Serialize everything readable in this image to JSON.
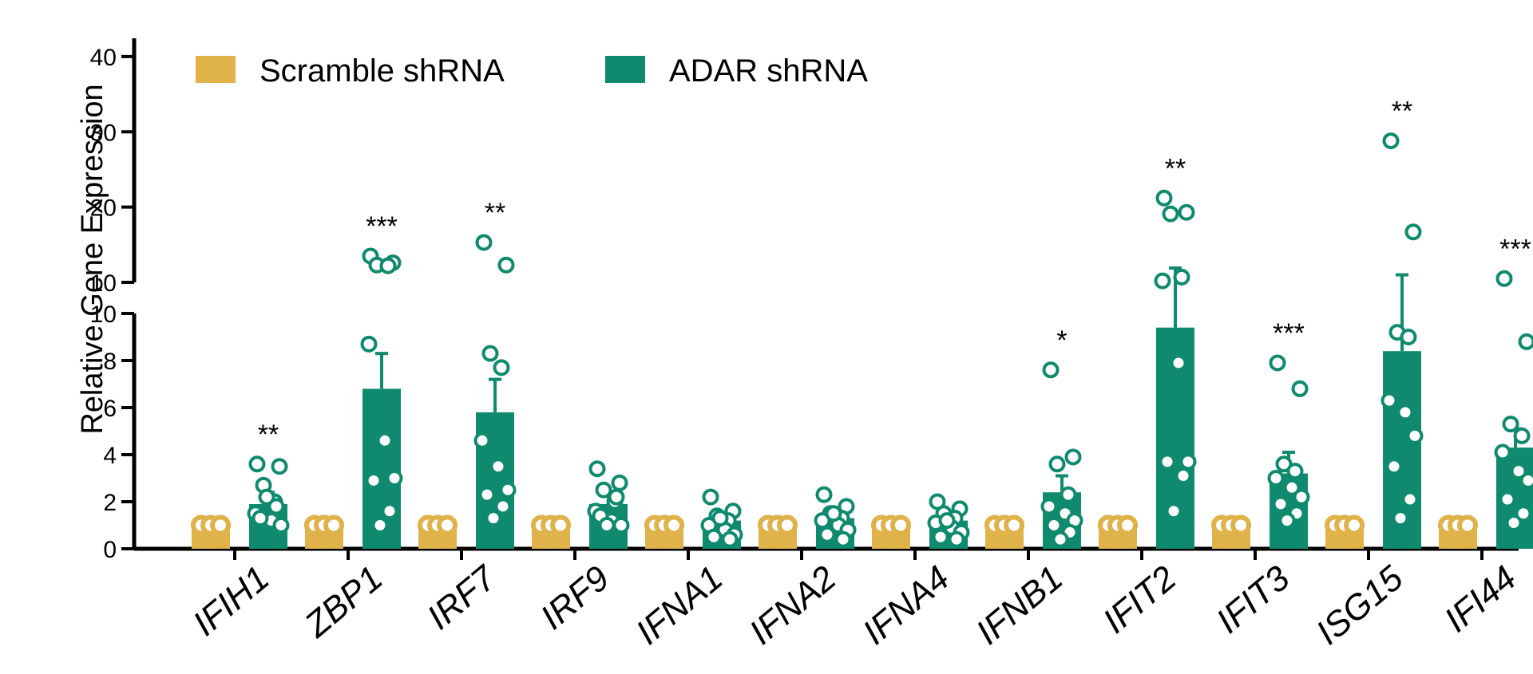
{
  "chart_data": {
    "type": "bar",
    "ylabel": "Relative Gene Expression",
    "y_axis": {
      "broken": true,
      "lower_segment": {
        "range": [
          0,
          10
        ],
        "ticks": [
          "0",
          "2",
          "4",
          "6",
          "8",
          "10"
        ],
        "tick_values": [
          0,
          2,
          4,
          6,
          8,
          10
        ]
      },
      "upper_segment": {
        "range": [
          10,
          42
        ],
        "ticks": [
          "10",
          "20",
          "30",
          "40"
        ],
        "tick_values": [
          10,
          20,
          30,
          40
        ]
      }
    },
    "legend": {
      "placement": "top-left"
    },
    "categories": [
      "IFIH1",
      "ZBP1",
      "IRF7",
      "IRF9",
      "IFNA1",
      "IFNA2",
      "IFNA4",
      "IFNB1",
      "IFIT2",
      "IFIT3",
      "ISG15",
      "IFI44"
    ],
    "series": [
      {
        "name": "Scramble shRNA",
        "color": "#e0b24a",
        "values": [
          1,
          1,
          1,
          1,
          1,
          1,
          1,
          1,
          1,
          1,
          1,
          1
        ],
        "errors": [
          0,
          0,
          0,
          0,
          0,
          0,
          0,
          0,
          0,
          0,
          0,
          0
        ],
        "points": [
          [
            1,
            1,
            1,
            1,
            1,
            1
          ],
          [
            1,
            1,
            1,
            1,
            1,
            1
          ],
          [
            1,
            1,
            1,
            1,
            1,
            1
          ],
          [
            1,
            1,
            1,
            1,
            1,
            1
          ],
          [
            1,
            1,
            1,
            1,
            1,
            1
          ],
          [
            1,
            1,
            1,
            1,
            1,
            1
          ],
          [
            1,
            1,
            1,
            1,
            1,
            1
          ],
          [
            1,
            1,
            1,
            1,
            1,
            1
          ],
          [
            1,
            1,
            1,
            1,
            1,
            1
          ],
          [
            1,
            1,
            1,
            1,
            1,
            1
          ],
          [
            1,
            1,
            1,
            1,
            1,
            1
          ],
          [
            1,
            1,
            1,
            1,
            1,
            1
          ]
        ]
      },
      {
        "name": "ADAR shRNA",
        "color": "#0f8a6e",
        "values": [
          1.9,
          6.8,
          5.8,
          1.9,
          1.2,
          1.3,
          1.2,
          2.4,
          9.4,
          3.2,
          8.4,
          4.3
        ],
        "errors": [
          0.5,
          1.5,
          1.4,
          0.35,
          0.25,
          0.25,
          0.25,
          0.7,
          2.5,
          0.9,
          2.6,
          0.8
        ],
        "points": [
          [
            3.6,
            3.5,
            2.7,
            2.0,
            1.5,
            1.2,
            1.0,
            1.3,
            1.8,
            2.2
          ],
          [
            13.5,
            12.6,
            12.3,
            12.2,
            8.7,
            4.6,
            3.0,
            2.9,
            1.6,
            1.0
          ],
          [
            15.3,
            12.3,
            8.3,
            7.7,
            4.6,
            3.5,
            2.5,
            2.3,
            1.8,
            1.3
          ],
          [
            3.4,
            2.8,
            2.5,
            2.0,
            1.6,
            1.2,
            1.0,
            1.4,
            2.2,
            1.0
          ],
          [
            2.2,
            1.6,
            1.4,
            1.2,
            1.0,
            0.8,
            0.6,
            0.5,
            0.4,
            1.3
          ],
          [
            2.3,
            1.8,
            1.5,
            1.3,
            1.2,
            1.0,
            0.8,
            0.6,
            0.4,
            1.5
          ],
          [
            2.0,
            1.7,
            1.5,
            1.3,
            1.1,
            0.9,
            0.7,
            0.5,
            0.4,
            1.2
          ],
          [
            7.6,
            3.9,
            3.6,
            2.3,
            1.8,
            1.5,
            1.2,
            1.0,
            0.7,
            0.4
          ],
          [
            21.2,
            19.3,
            19.1,
            10.7,
            10.2,
            7.9,
            3.7,
            3.7,
            3.1,
            1.6
          ],
          [
            7.9,
            6.8,
            3.6,
            3.3,
            3.0,
            2.6,
            2.2,
            1.9,
            1.5,
            1.2
          ],
          [
            28.8,
            16.7,
            9.2,
            9.0,
            6.3,
            5.8,
            4.8,
            3.5,
            2.1,
            1.3
          ],
          [
            10.5,
            8.8,
            5.3,
            4.8,
            4.1,
            3.3,
            2.9,
            2.1,
            1.5,
            1.1
          ]
        ]
      }
    ],
    "significance": [
      "**",
      "***",
      "**",
      "",
      "",
      "",
      "",
      "*",
      "**",
      "***",
      "**",
      "***"
    ]
  }
}
